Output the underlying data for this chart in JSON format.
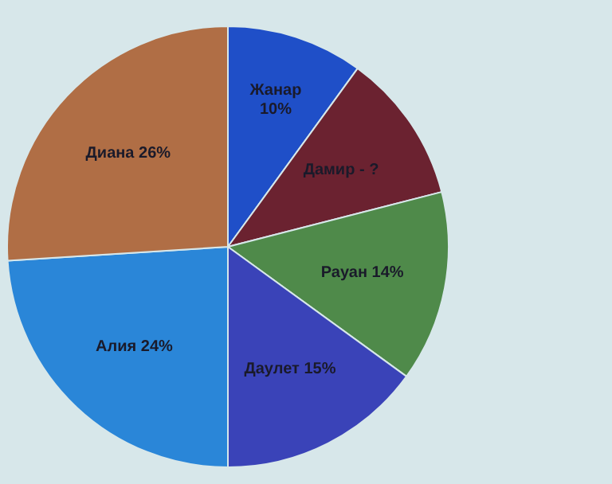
{
  "chart_data": {
    "type": "pie",
    "categories": [
      "Жанар",
      "Дамир",
      "Рауан",
      "Даулет",
      "Алия",
      "Диана"
    ],
    "values": [
      10,
      11,
      14,
      15,
      24,
      26
    ],
    "value_labels": [
      "10%",
      "- ?",
      "14%",
      "15%",
      "24%",
      "26%"
    ],
    "colors": [
      "#1f4fc8",
      "#6b2230",
      "#4f8a4a",
      "#3a43b8",
      "#2a86d8",
      "#b06e45"
    ],
    "legend": false
  }
}
